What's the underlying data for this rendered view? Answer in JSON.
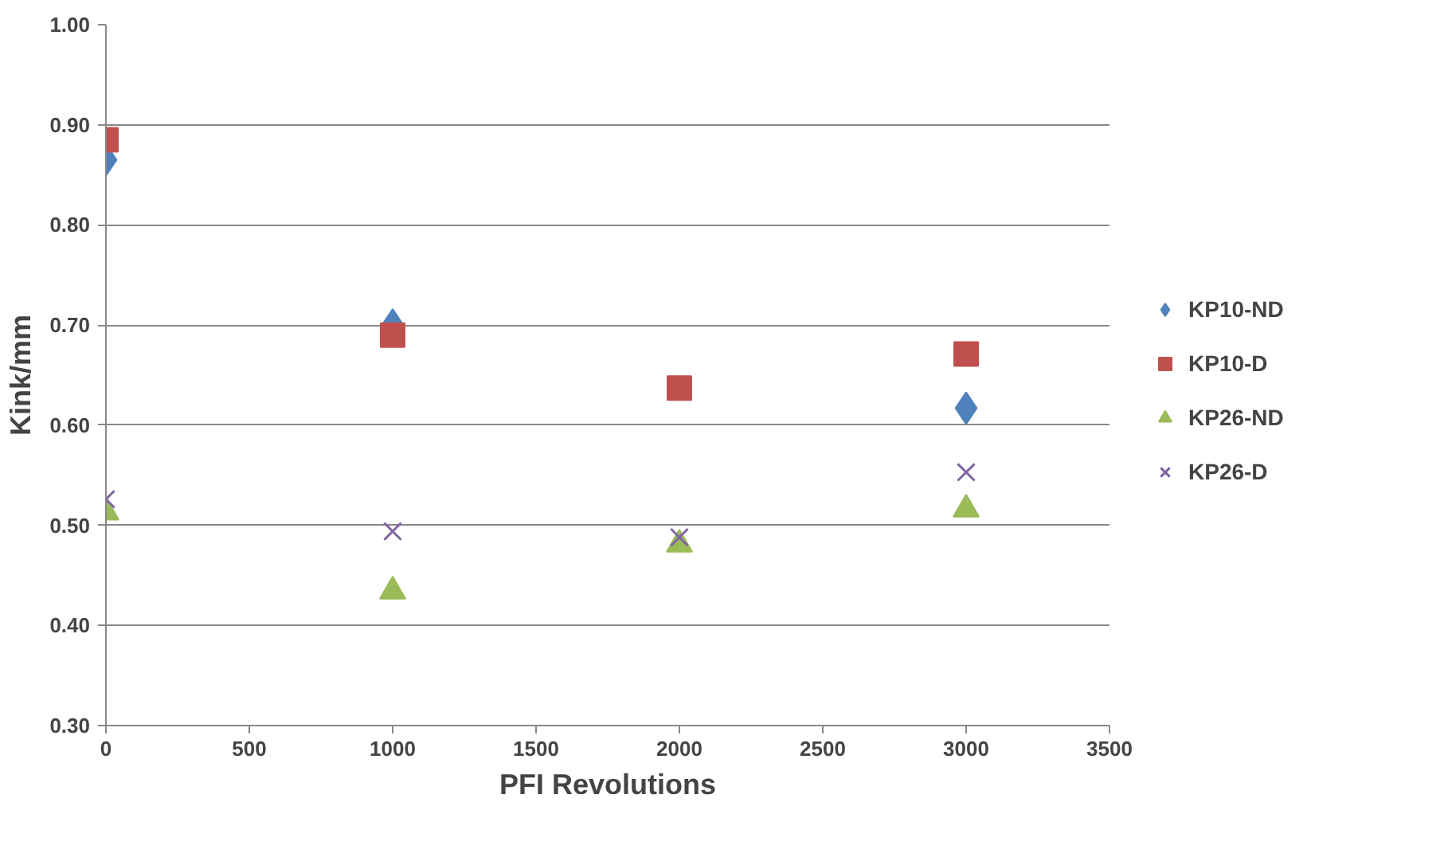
{
  "chart_data": {
    "type": "scatter",
    "xlabel": "PFI Revolutions",
    "ylabel": "Kink/mm",
    "x": [
      0,
      1000,
      2000,
      3000
    ],
    "series": [
      {
        "name": "KP10-ND",
        "color": "#4f81bd",
        "marker": "diamond",
        "values": [
          0.865,
          0.7,
          null,
          0.617
        ]
      },
      {
        "name": "KP10-D",
        "color": "#c0504d",
        "marker": "square",
        "values": [
          0.885,
          0.69,
          0.637,
          0.671
        ]
      },
      {
        "name": "KP26-ND",
        "color": "#9bbb59",
        "marker": "triangle",
        "values": [
          0.513,
          0.434,
          0.481,
          0.516
        ]
      },
      {
        "name": "KP26-D",
        "color": "#8064a2",
        "marker": "cross",
        "values": [
          0.526,
          0.494,
          0.488,
          0.553
        ]
      }
    ],
    "xlim": [
      0,
      3500
    ],
    "xticks": [
      0,
      500,
      1000,
      1500,
      2000,
      2500,
      3000,
      3500
    ],
    "ylim": [
      0.3,
      1.0
    ],
    "yticks": [
      {
        "value": 0.3,
        "label": "0.30"
      },
      {
        "value": 0.4,
        "label": "0.40"
      },
      {
        "value": 0.5,
        "label": "0.50"
      },
      {
        "value": 0.6,
        "label": "0.60"
      },
      {
        "value": 0.7,
        "label": "0.70"
      },
      {
        "value": 0.8,
        "label": "0.80"
      },
      {
        "value": 0.9,
        "label": "0.90"
      },
      {
        "value": 1.0,
        "label": "1.00"
      }
    ],
    "grid": "y",
    "legend": "right"
  }
}
